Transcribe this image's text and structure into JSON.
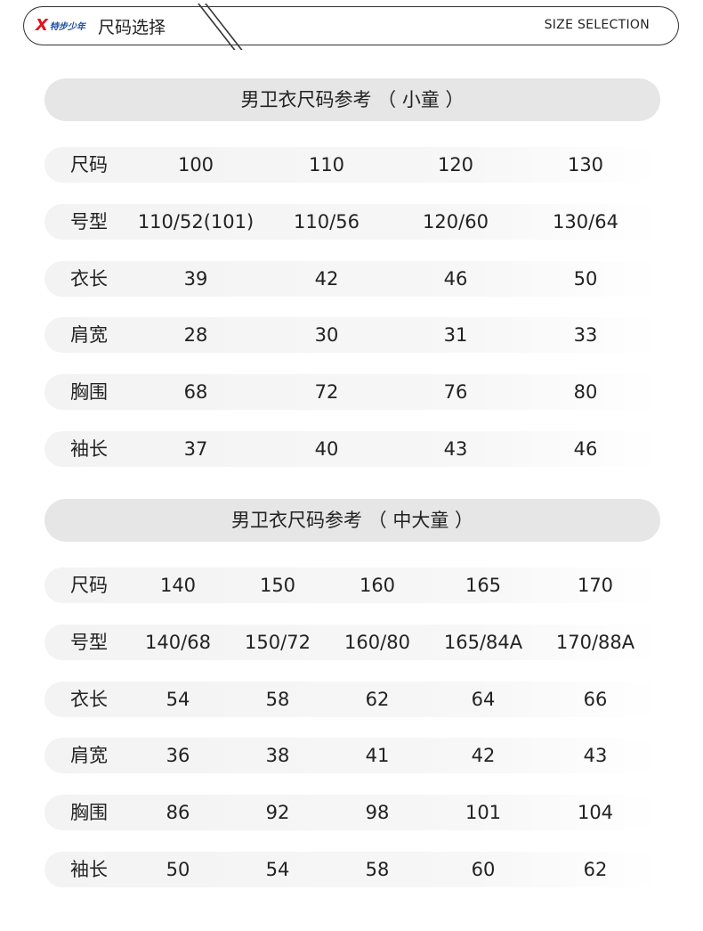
{
  "header": {
    "logo_text": "特步少年",
    "title": "尺码选择",
    "subtitle": "SIZE SELECTION",
    "colors": {
      "logo_red": "#e0141e",
      "logo_blue": "#1d4fa0"
    }
  },
  "tables": [
    {
      "title": "男卫衣尺码参考 （ 小童 ）",
      "rows": [
        {
          "label": "尺码",
          "values": [
            "100",
            "110",
            "120",
            "130"
          ]
        },
        {
          "label": "号型",
          "values": [
            "110/52(101)",
            "110/56",
            "120/60",
            "130/64"
          ]
        },
        {
          "label": "衣长",
          "values": [
            "39",
            "42",
            "46",
            "50"
          ]
        },
        {
          "label": "肩宽",
          "values": [
            "28",
            "30",
            "31",
            "33"
          ]
        },
        {
          "label": "胸围",
          "values": [
            "68",
            "72",
            "76",
            "80"
          ]
        },
        {
          "label": "袖长",
          "values": [
            "37",
            "40",
            "43",
            "46"
          ]
        }
      ]
    },
    {
      "title": "男卫衣尺码参考 （ 中大童 ）",
      "rows": [
        {
          "label": "尺码",
          "values": [
            "140",
            "150",
            "160",
            "165",
            "170"
          ]
        },
        {
          "label": "号型",
          "values": [
            "140/68",
            "150/72",
            "160/80",
            "165/84A",
            "170/88A"
          ]
        },
        {
          "label": "衣长",
          "values": [
            "54",
            "58",
            "62",
            "64",
            "66"
          ]
        },
        {
          "label": "肩宽",
          "values": [
            "36",
            "38",
            "41",
            "42",
            "43"
          ]
        },
        {
          "label": "胸围",
          "values": [
            "86",
            "92",
            "98",
            "101",
            "104"
          ]
        },
        {
          "label": "袖长",
          "values": [
            "50",
            "54",
            "58",
            "60",
            "62"
          ]
        }
      ]
    }
  ]
}
